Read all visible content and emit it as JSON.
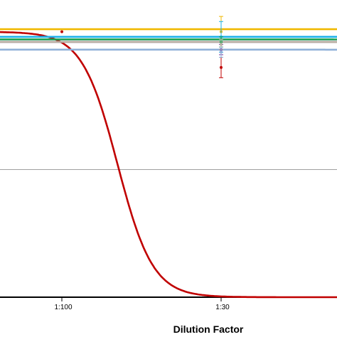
{
  "chart_data": {
    "type": "line",
    "xlabel": "Dilution Factor",
    "ylabel": "",
    "x_tick_labels": [
      "1:100",
      "1:30"
    ],
    "y_range": [
      0,
      1.1
    ],
    "gridlines_y": [
      0.5,
      1.0
    ],
    "grid": "horizontal",
    "legend": "none",
    "series": [
      {
        "color": "#c00000",
        "top": 1.04,
        "bottom": 0.0,
        "midpoint": 0.35,
        "points": [
          {
            "x": 0.0,
            "y": 1.04
          },
          {
            "x": 1.0,
            "y": 0.9,
            "err": 0.04
          }
        ]
      },
      {
        "color": "#f0b800",
        "top": 1.05,
        "bottom": 0.0,
        "midpoint": 2.85,
        "points": [
          {
            "x": 1.0,
            "y": 1.04,
            "err": 0.06
          },
          {
            "x": 2.0,
            "y": 1.0,
            "err": 0.08
          }
        ]
      },
      {
        "color": "#7030a0",
        "top": 1.0,
        "bottom": 0.0,
        "midpoint": 3.06,
        "points": [
          {
            "x": 1.0,
            "y": 0.97,
            "err": 0.02
          },
          {
            "x": 2.0,
            "y": 0.97,
            "err": 0.02
          }
        ]
      },
      {
        "color": "#1ab0e8",
        "top": 1.02,
        "bottom": 0.0,
        "midpoint": 2.8,
        "points": [
          {
            "x": 1.0,
            "y": 1.02,
            "err": 0.06
          },
          {
            "x": 2.0,
            "y": 0.99,
            "err": 0.05
          }
        ]
      },
      {
        "color": "#18a050",
        "top": 1.01,
        "bottom": 0.0,
        "midpoint": 2.72,
        "points": [
          {
            "x": 1.0,
            "y": 1.0,
            "err": 0.02
          },
          {
            "x": 2.0,
            "y": 0.98,
            "err": 0.02
          }
        ]
      },
      {
        "color": "#b8b0a0",
        "top": 1.0,
        "bottom": 0.0,
        "midpoint": 2.64,
        "points": [
          {
            "x": 1.0,
            "y": 0.99,
            "err": 0.02
          },
          {
            "x": 2.0,
            "y": 0.97,
            "err": 0.02
          }
        ]
      },
      {
        "color": "#8fb0d8",
        "top": 0.97,
        "bottom": 0.0,
        "midpoint": 2.58,
        "points": [
          {
            "x": 1.0,
            "y": 0.96,
            "err": 0.02
          },
          {
            "x": 2.0,
            "y": 0.8,
            "err": 0.18
          }
        ]
      }
    ]
  }
}
